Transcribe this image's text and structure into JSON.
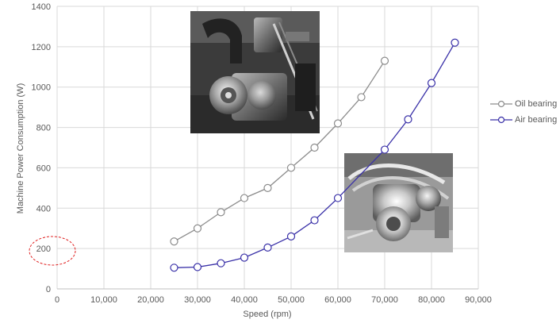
{
  "chart_data": {
    "type": "line",
    "xlabel": "Speed (rpm)",
    "ylabel": "Machine Power Consumption (W)",
    "xlim": [
      0,
      90000
    ],
    "ylim": [
      0,
      1400
    ],
    "x_ticks": [
      0,
      10000,
      20000,
      30000,
      40000,
      50000,
      60000,
      70000,
      80000,
      90000
    ],
    "x_tick_labels": [
      "0",
      "10,000",
      "20,000",
      "30,000",
      "40,000",
      "50,000",
      "60,000",
      "70,000",
      "80,000",
      "90,000"
    ],
    "y_ticks": [
      0,
      200,
      400,
      600,
      800,
      1000,
      1200,
      1400
    ],
    "y_tick_labels": [
      "0",
      "200",
      "400",
      "600",
      "800",
      "1000",
      "1200",
      "1400"
    ],
    "grid": true,
    "legend_position": "right",
    "series": [
      {
        "name": "Oil bearing",
        "color": "#8c8c8c",
        "x": [
          25000,
          30000,
          35000,
          40000,
          45000,
          50000,
          55000,
          60000,
          65000,
          70000
        ],
        "y": [
          235,
          300,
          380,
          450,
          500,
          600,
          700,
          820,
          950,
          1130
        ]
      },
      {
        "name": "Air bearing",
        "color": "#3a31a8",
        "x": [
          25000,
          30000,
          35000,
          40000,
          45000,
          50000,
          55000,
          60000,
          70000,
          75000,
          80000,
          85000
        ],
        "y": [
          105,
          108,
          127,
          155,
          205,
          260,
          340,
          450,
          690,
          840,
          1020,
          1220
        ]
      }
    ],
    "annotations": [
      {
        "kind": "dashed-ellipse",
        "color": "#e02020",
        "label": "200",
        "note": "highlights y tick 200"
      }
    ],
    "inset_images": [
      {
        "name": "oil-bearing-machine-photo"
      },
      {
        "name": "air-bearing-machine-photo"
      }
    ]
  }
}
